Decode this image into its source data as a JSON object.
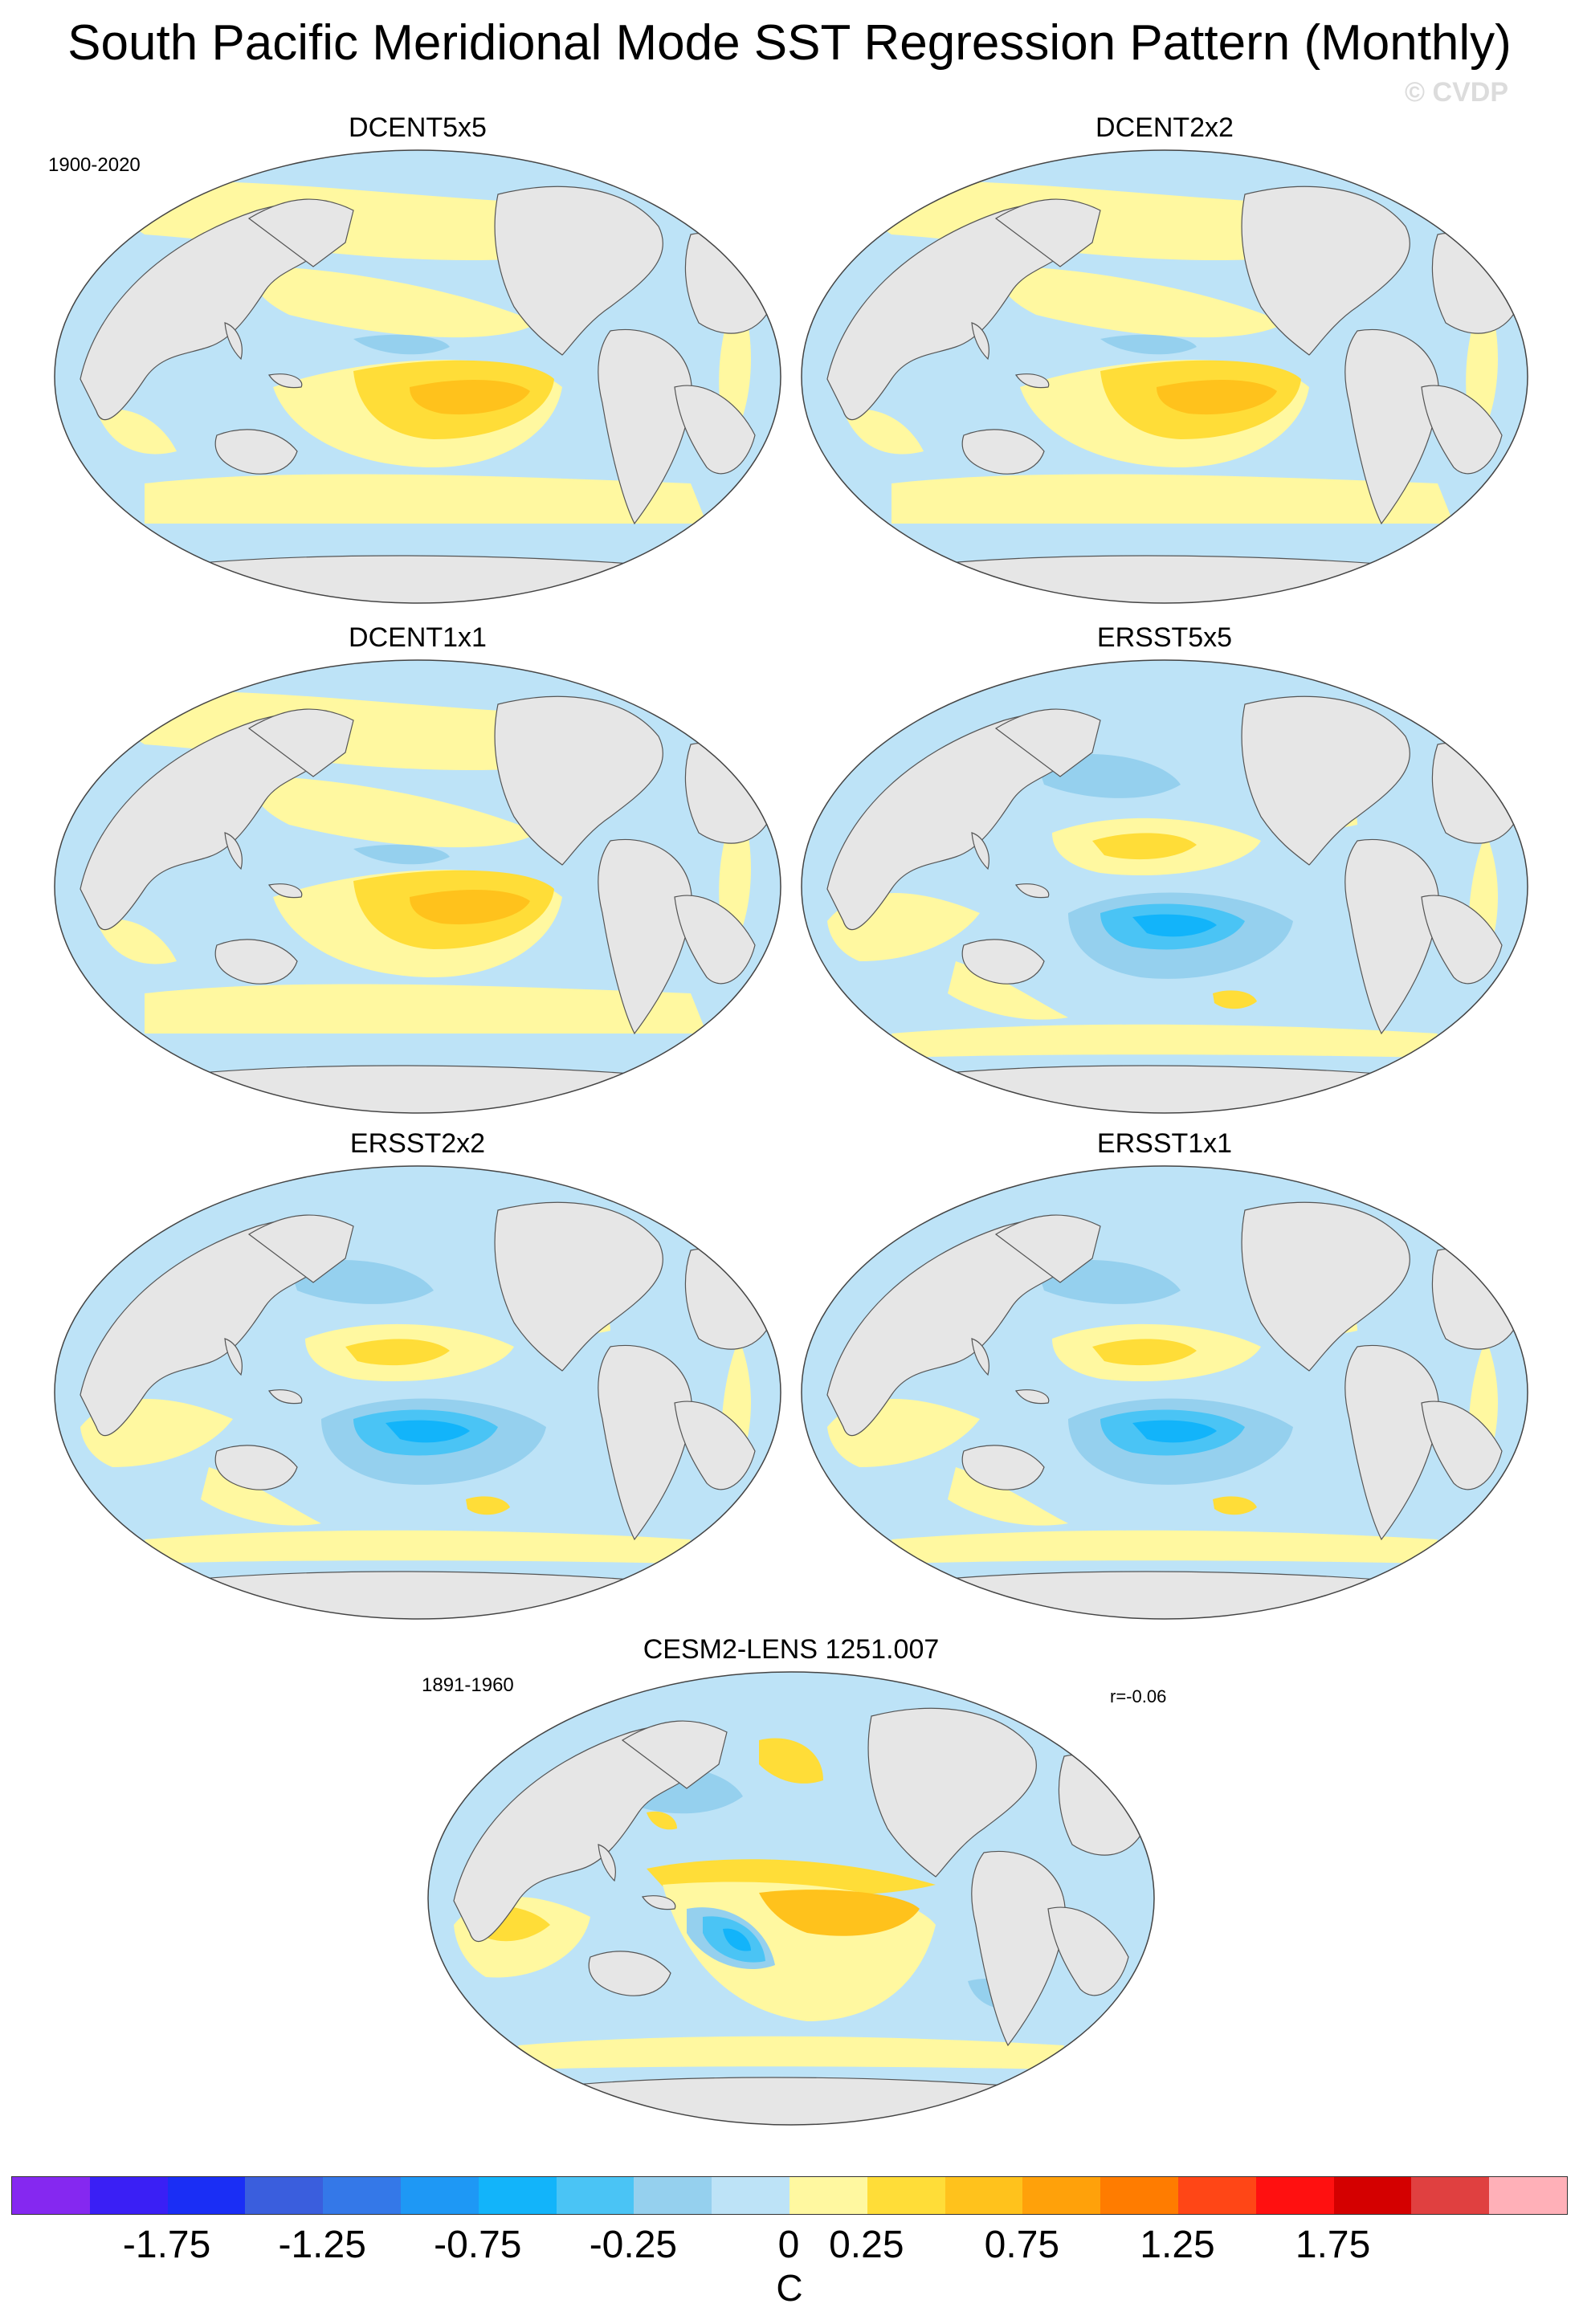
{
  "figure": {
    "title": "South Pacific Meridional Mode SST Regression Pattern (Monthly)",
    "watermark": "© CVDP"
  },
  "panels": [
    {
      "name": "DCENT5x5",
      "period": "1900-2020",
      "variant": "dcent"
    },
    {
      "name": "DCENT2x2",
      "variant": "dcent"
    },
    {
      "name": "DCENT1x1",
      "variant": "dcent"
    },
    {
      "name": "ERSST5x5",
      "variant": "ersst"
    },
    {
      "name": "ERSST2x2",
      "variant": "ersst"
    },
    {
      "name": "ERSST1x1",
      "variant": "ersst"
    },
    {
      "name": "CESM2-LENS 1251.007",
      "period": "1891-1960",
      "stat": "r=-0.06",
      "variant": "cesm"
    }
  ],
  "colorbar": {
    "units": "C",
    "tick_labels": [
      "-1.75",
      "-1.25",
      "-0.75",
      "-0.25",
      "0",
      "0.25",
      "0.75",
      "1.25",
      "1.75"
    ],
    "colors": [
      "#8528f0",
      "#3a1ff5",
      "#1a2ef5",
      "#3a5edd",
      "#3478e8",
      "#1e98f5",
      "#12b4fa",
      "#4ac4f5",
      "#95d0ee",
      "#bde3f7",
      "#fff8a0",
      "#ffdd38",
      "#ffc21c",
      "#ffa10a",
      "#ff7c00",
      "#ff4616",
      "#ff1010",
      "#d40000",
      "#e04040",
      "#ffb0b8"
    ]
  },
  "map_colors": {
    "land": "#e6e6e6",
    "ocean_neg": "#bde3f7",
    "ocean_pos": "#fff8a0",
    "neg2": "#95d0ee",
    "neg3": "#4ac4f5",
    "neg4": "#12b4fa",
    "pos2": "#ffdd38",
    "pos3": "#ffc21c",
    "pos4": "#ffa10a"
  }
}
